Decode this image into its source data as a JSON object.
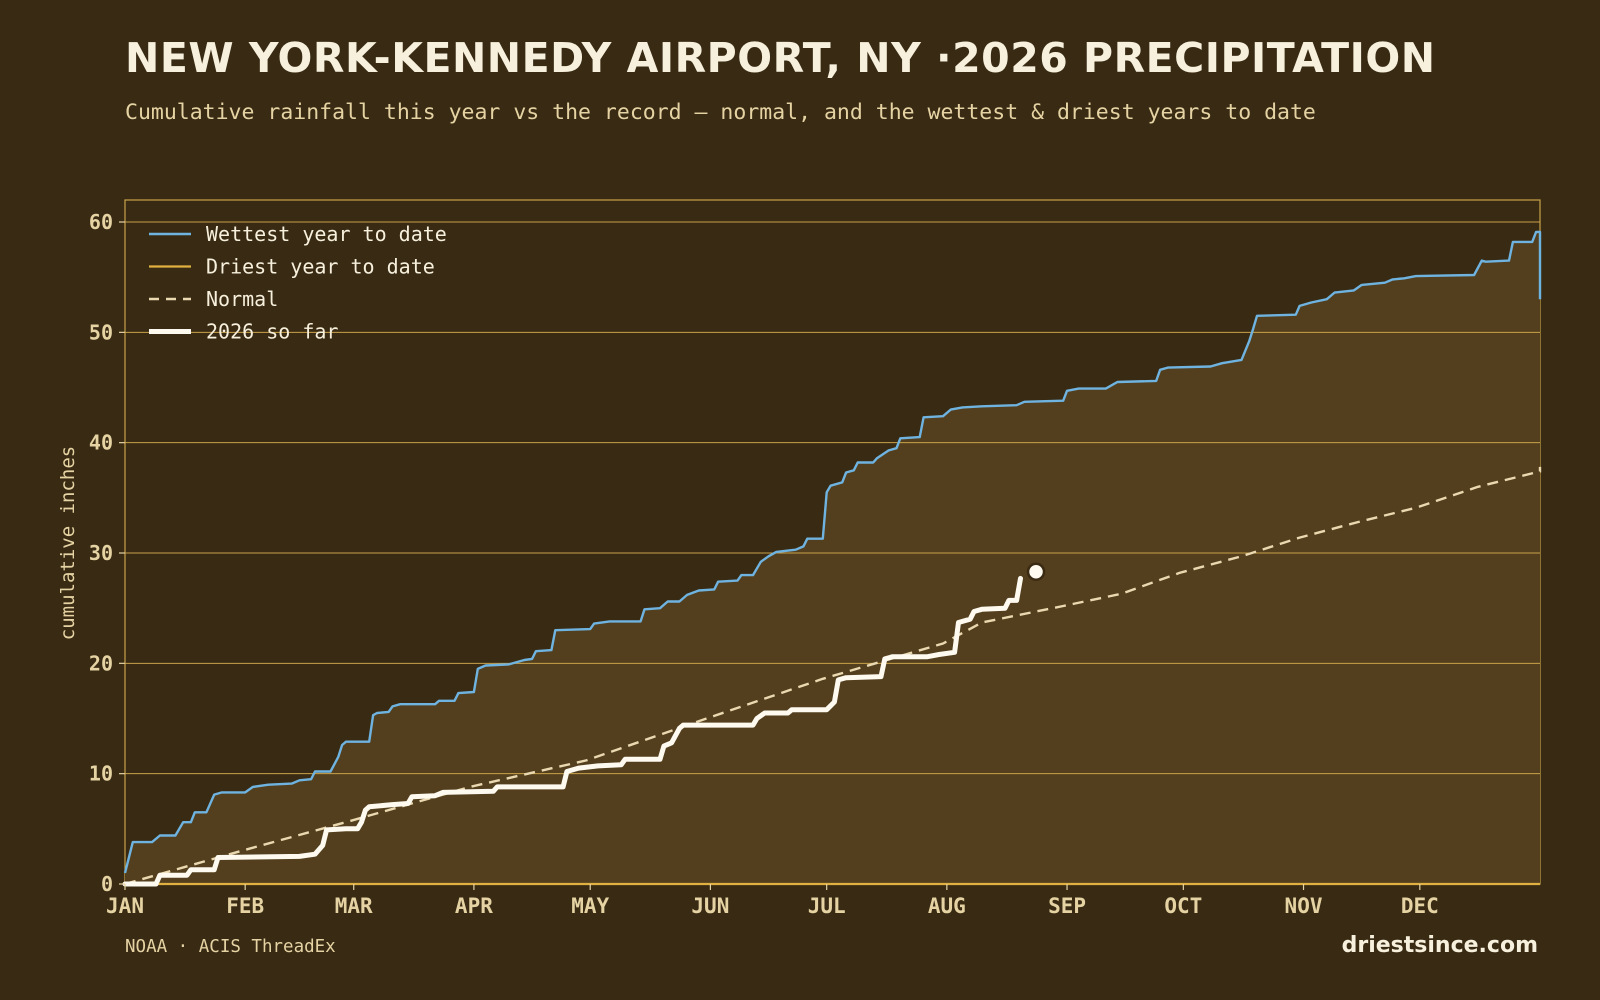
{
  "header": {
    "title": "NEW YORK-KENNEDY AIRPORT, NY ·2026 PRECIPITATION",
    "subtitle": "Cumulative rainfall this year vs the record — normal, and the wettest & driest years to date"
  },
  "footer": {
    "source": "NOAA · ACIS ThreadEx",
    "brand": "driestsince.com"
  },
  "colors": {
    "background": "#382a13",
    "band_fill": "#533f1e",
    "frame": "#c9a24a",
    "wettest": "#6fb3e0",
    "driest": "#e0b040",
    "normal": "#ead9b0",
    "current": "#fffaf0",
    "text": "#e6d3a3"
  },
  "chart_data": {
    "type": "line",
    "title": "",
    "xlabel": "",
    "ylabel": "cumulative inches",
    "xlim": [
      1,
      366
    ],
    "ylim": [
      0,
      60
    ],
    "y_ticks": [
      0,
      10,
      20,
      30,
      40,
      50,
      60
    ],
    "x_ticks": [
      {
        "label": "JAN",
        "day": 1
      },
      {
        "label": "FEB",
        "day": 32
      },
      {
        "label": "MAR",
        "day": 60
      },
      {
        "label": "APR",
        "day": 91
      },
      {
        "label": "MAY",
        "day": 121
      },
      {
        "label": "JUN",
        "day": 152
      },
      {
        "label": "JUL",
        "day": 182
      },
      {
        "label": "AUG",
        "day": 213
      },
      {
        "label": "SEP",
        "day": 244
      },
      {
        "label": "OCT",
        "day": 274
      },
      {
        "label": "NOV",
        "day": 305
      },
      {
        "label": "DEC",
        "day": 335
      }
    ],
    "grid": true,
    "legend_position": "top-left",
    "series": [
      {
        "name": "Wettest year to date",
        "style": "solid",
        "points": [
          [
            1,
            1
          ],
          [
            3,
            3.8
          ],
          [
            8,
            3.8
          ],
          [
            10,
            4.4
          ],
          [
            14,
            4.4
          ],
          [
            16,
            5.6
          ],
          [
            18,
            5.6
          ],
          [
            19,
            6.5
          ],
          [
            22,
            6.5
          ],
          [
            24,
            8.1
          ],
          [
            26,
            8.3
          ],
          [
            32,
            8.3
          ],
          [
            34,
            8.8
          ],
          [
            38,
            9
          ],
          [
            44,
            9.1
          ],
          [
            46,
            9.4
          ],
          [
            49,
            9.5
          ],
          [
            50,
            10.2
          ],
          [
            54,
            10.2
          ],
          [
            56,
            11.5
          ],
          [
            57,
            12.6
          ],
          [
            58,
            12.9
          ],
          [
            64,
            12.9
          ],
          [
            65,
            15.3
          ],
          [
            66,
            15.5
          ],
          [
            69,
            15.6
          ],
          [
            70,
            16.1
          ],
          [
            72,
            16.3
          ],
          [
            81,
            16.3
          ],
          [
            82,
            16.6
          ],
          [
            86,
            16.6
          ],
          [
            87,
            17.3
          ],
          [
            91,
            17.4
          ],
          [
            92,
            19.5
          ],
          [
            94,
            19.8
          ],
          [
            100,
            19.9
          ],
          [
            104,
            20.3
          ],
          [
            106,
            20.4
          ],
          [
            107,
            21.1
          ],
          [
            111,
            21.2
          ],
          [
            112,
            23
          ],
          [
            121,
            23.1
          ],
          [
            122,
            23.6
          ],
          [
            126,
            23.8
          ],
          [
            134,
            23.8
          ],
          [
            135,
            24.9
          ],
          [
            139,
            25
          ],
          [
            141,
            25.6
          ],
          [
            144,
            25.6
          ],
          [
            146,
            26.2
          ],
          [
            149,
            26.6
          ],
          [
            153,
            26.7
          ],
          [
            154,
            27.4
          ],
          [
            159,
            27.5
          ],
          [
            160,
            28
          ],
          [
            163,
            28
          ],
          [
            165,
            29.2
          ],
          [
            167,
            29.7
          ],
          [
            169,
            30.1
          ],
          [
            174,
            30.3
          ],
          [
            176,
            30.6
          ],
          [
            177,
            31.3
          ],
          [
            181,
            31.3
          ],
          [
            182,
            35.5
          ],
          [
            183,
            36.1
          ],
          [
            186,
            36.4
          ],
          [
            187,
            37.3
          ],
          [
            189,
            37.5
          ],
          [
            190,
            38.2
          ],
          [
            194,
            38.2
          ],
          [
            195,
            38.6
          ],
          [
            198,
            39.3
          ],
          [
            200,
            39.5
          ],
          [
            201,
            40.4
          ],
          [
            206,
            40.5
          ],
          [
            207,
            42.3
          ],
          [
            212,
            42.4
          ],
          [
            214,
            43
          ],
          [
            217,
            43.2
          ],
          [
            222,
            43.3
          ],
          [
            231,
            43.4
          ],
          [
            233,
            43.7
          ],
          [
            243,
            43.8
          ],
          [
            244,
            44.7
          ],
          [
            247,
            44.9
          ],
          [
            254,
            44.9
          ],
          [
            257,
            45.5
          ],
          [
            267,
            45.6
          ],
          [
            268,
            46.6
          ],
          [
            270,
            46.8
          ],
          [
            281,
            46.9
          ],
          [
            284,
            47.2
          ],
          [
            289,
            47.5
          ],
          [
            291,
            49.2
          ],
          [
            292,
            50.3
          ],
          [
            293,
            51.5
          ],
          [
            303,
            51.6
          ],
          [
            304,
            52.4
          ],
          [
            307,
            52.7
          ],
          [
            311,
            53
          ],
          [
            313,
            53.6
          ],
          [
            318,
            53.8
          ],
          [
            320,
            54.3
          ],
          [
            326,
            54.5
          ],
          [
            328,
            54.8
          ],
          [
            331,
            54.9
          ],
          [
            334,
            55.1
          ],
          [
            349,
            55.2
          ],
          [
            351,
            56.5
          ],
          [
            352,
            56.4
          ],
          [
            358,
            56.5
          ],
          [
            359,
            58.2
          ],
          [
            364,
            58.2
          ],
          [
            365,
            59.1
          ],
          [
            369,
            59.1
          ],
          [
            370,
            53
          ]
        ]
      },
      {
        "name": "Driest year to date",
        "style": "solid",
        "points": [
          [
            1,
            0
          ],
          [
            370,
            0
          ]
        ]
      },
      {
        "name": "Normal",
        "style": "dashed",
        "points": [
          [
            1,
            0
          ],
          [
            31,
            3
          ],
          [
            59,
            5.7
          ],
          [
            90,
            8.8
          ],
          [
            120,
            11.2
          ],
          [
            151,
            15
          ],
          [
            181,
            18.6
          ],
          [
            212,
            21.8
          ],
          [
            222,
            23.7
          ],
          [
            243,
            25.2
          ],
          [
            258,
            26.3
          ],
          [
            273,
            28.2
          ],
          [
            289,
            29.7
          ],
          [
            304,
            31.4
          ],
          [
            319,
            32.8
          ],
          [
            334,
            34.1
          ],
          [
            350,
            36
          ],
          [
            366,
            37.4
          ],
          [
            370,
            37.8
          ]
        ]
      },
      {
        "name": "2026 so far",
        "style": "bold",
        "points": [
          [
            1,
            0
          ],
          [
            9,
            0
          ],
          [
            10,
            0.8
          ],
          [
            17,
            0.8
          ],
          [
            18,
            1.3
          ],
          [
            24,
            1.3
          ],
          [
            25,
            2.4
          ],
          [
            46,
            2.5
          ],
          [
            50,
            2.7
          ],
          [
            52,
            3.5
          ],
          [
            53,
            4.9
          ],
          [
            58,
            5
          ],
          [
            61,
            5
          ],
          [
            62,
            5.6
          ],
          [
            63,
            6.7
          ],
          [
            64,
            7
          ],
          [
            70,
            7.2
          ],
          [
            74,
            7.3
          ],
          [
            75,
            7.9
          ],
          [
            81,
            8
          ],
          [
            83,
            8.3
          ],
          [
            96,
            8.4
          ],
          [
            97,
            8.8
          ],
          [
            114,
            8.8
          ],
          [
            115,
            10.2
          ],
          [
            118,
            10.5
          ],
          [
            123,
            10.7
          ],
          [
            129,
            10.8
          ],
          [
            130,
            11.3
          ],
          [
            139,
            11.3
          ],
          [
            140,
            12.5
          ],
          [
            142,
            12.8
          ],
          [
            144,
            14.1
          ],
          [
            145,
            14.4
          ],
          [
            163,
            14.4
          ],
          [
            164,
            15
          ],
          [
            166,
            15.5
          ],
          [
            172,
            15.5
          ],
          [
            173,
            15.8
          ],
          [
            182,
            15.8
          ],
          [
            184,
            16.5
          ],
          [
            185,
            18.5
          ],
          [
            187,
            18.7
          ],
          [
            196,
            18.8
          ],
          [
            197,
            20.4
          ],
          [
            199,
            20.6
          ],
          [
            208,
            20.6
          ],
          [
            211,
            20.8
          ],
          [
            215,
            21
          ],
          [
            216,
            23.7
          ],
          [
            219,
            24
          ],
          [
            220,
            24.7
          ],
          [
            222,
            24.9
          ],
          [
            228,
            25
          ],
          [
            229,
            25.7
          ],
          [
            231,
            25.7
          ],
          [
            232,
            27.7
          ]
        ],
        "endpoint": [
          236,
          28.3
        ]
      }
    ]
  }
}
